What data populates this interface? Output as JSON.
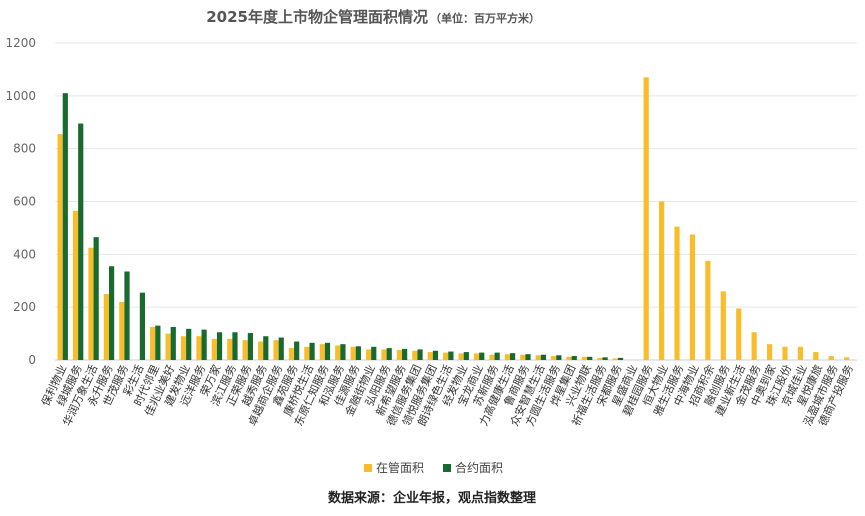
{
  "chart_data": {
    "type": "bar",
    "title": "2025年度上市物企管理面积情况",
    "title_unit": "（单位：百万平方米）",
    "ylim": [
      0,
      1200
    ],
    "yticks": [
      0,
      200,
      400,
      600,
      800,
      1000,
      1200
    ],
    "grid": true,
    "legend_position": "bottom",
    "categories": [
      "保利物业",
      "绿城服务",
      "华润万象生活",
      "永升服务",
      "世茂服务",
      "彩生活",
      "时代邻里",
      "佳兆业美好",
      "建发物业",
      "远洋服务",
      "荣万家",
      "滨江服务",
      "正荣服务",
      "越秀服务",
      "卓越商企服务",
      "鑫苑服务",
      "康桥悦生活",
      "东原仁知服务",
      "和泓服务",
      "佳源服务",
      "金融街物业",
      "弘阳服务",
      "新希望服务",
      "德信服务集团",
      "领悦服务集团",
      "朗诗绿色生活",
      "经发物业",
      "宝龙商业",
      "苏新服务",
      "力高健康生活",
      "鲁商服务",
      "众安智慧生活",
      "方圆生活服务",
      "烨星集团",
      "兴业物联",
      "祈福生活服务",
      "宋都服务",
      "星盛商业",
      "碧桂园服务",
      "恒大物业",
      "雅生活服务",
      "中海物业",
      "招商积余",
      "融创服务",
      "建业新生活",
      "金茂服务",
      "中奥到家",
      "珠江股份",
      "京城佳业",
      "星悦康旅",
      "泓盈城市服务",
      "德商产投服务"
    ],
    "series": [
      {
        "name": "在管面积",
        "color": "#f9bd2b",
        "values": [
          855,
          565,
          425,
          250,
          220,
          0,
          125,
          100,
          90,
          90,
          80,
          80,
          75,
          70,
          75,
          45,
          50,
          60,
          55,
          50,
          40,
          40,
          38,
          35,
          30,
          28,
          25,
          25,
          20,
          22,
          20,
          18,
          15,
          12,
          12,
          8,
          6,
          0,
          1070,
          600,
          505,
          475,
          375,
          260,
          195,
          105,
          60,
          50,
          50,
          30,
          15,
          10
        ]
      },
      {
        "name": "合约面积",
        "color": "#176b2e",
        "values": [
          1010,
          895,
          465,
          355,
          335,
          255,
          130,
          125,
          118,
          115,
          105,
          105,
          102,
          90,
          85,
          70,
          65,
          65,
          60,
          52,
          50,
          45,
          42,
          40,
          35,
          32,
          30,
          28,
          28,
          26,
          22,
          20,
          18,
          15,
          12,
          10,
          8,
          0,
          0,
          0,
          0,
          0,
          0,
          0,
          0,
          0,
          0,
          0,
          0,
          0,
          0,
          0
        ]
      }
    ]
  },
  "source_text": "数据来源：企业年报，观点指数整理"
}
